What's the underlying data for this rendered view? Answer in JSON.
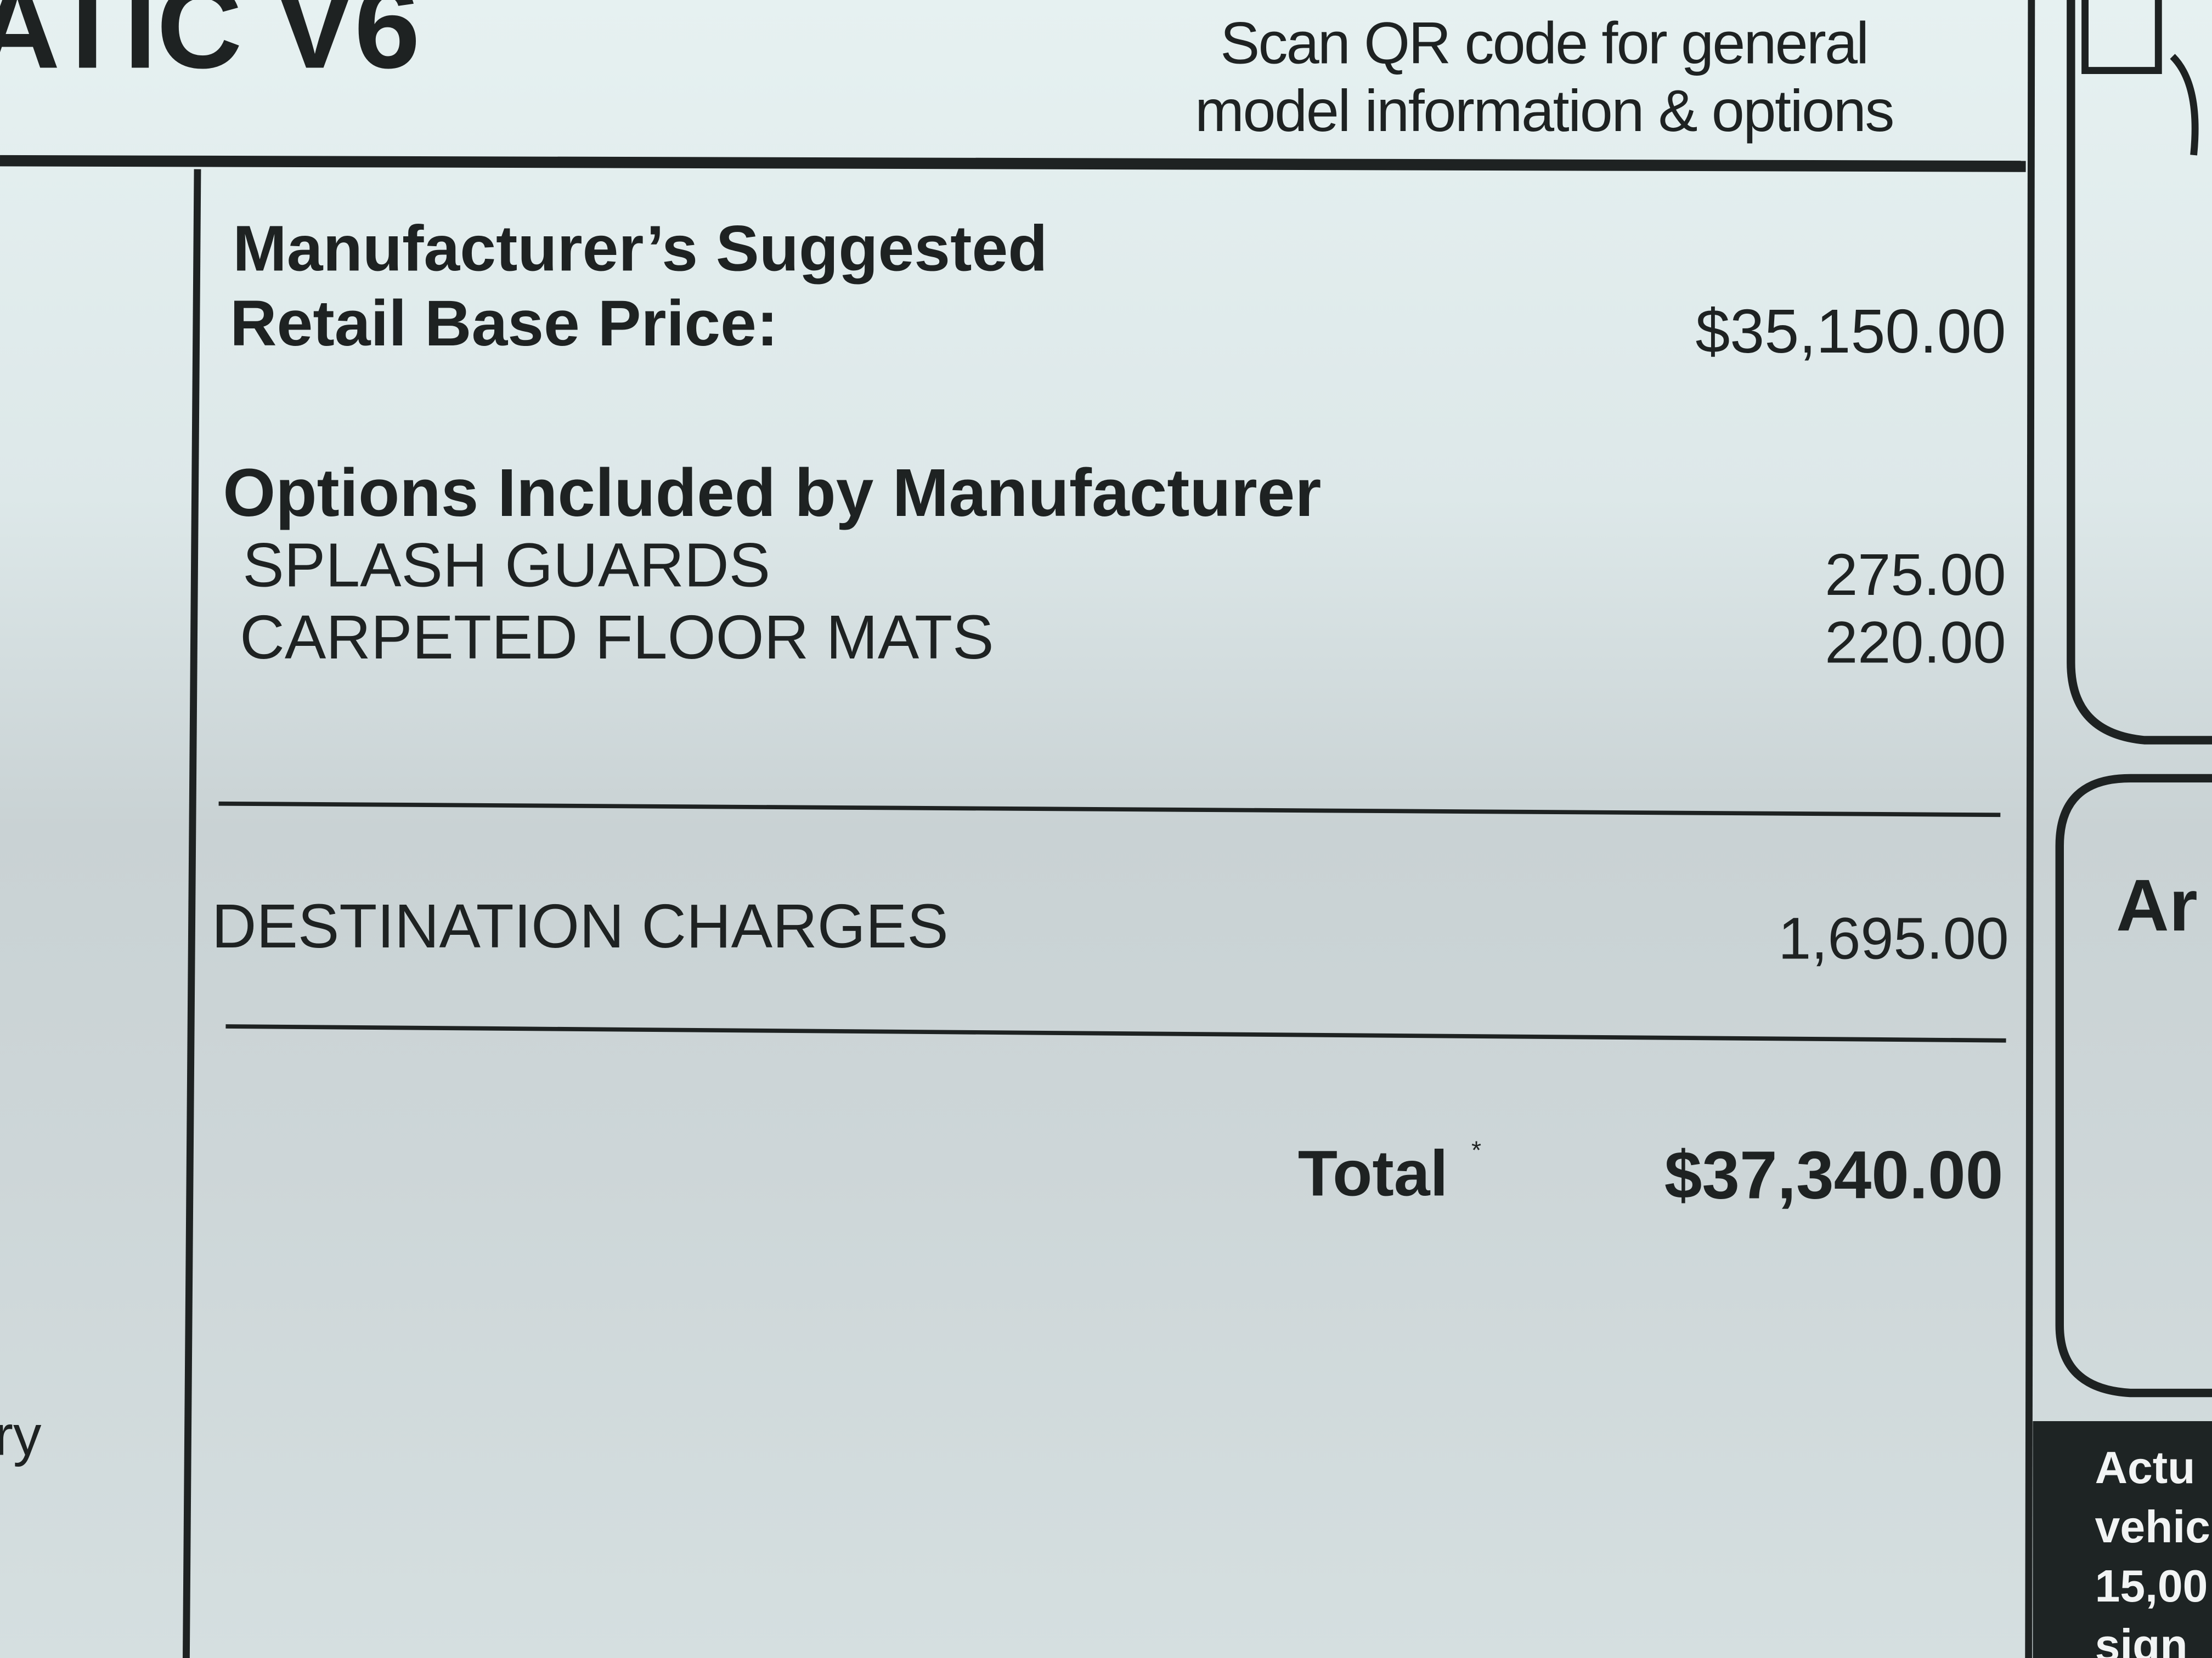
{
  "header": {
    "model_fragment": "ATIC V6",
    "qr_note": [
      "Scan QR code for general",
      "model information & options"
    ]
  },
  "price": {
    "label": [
      "Manufacturer’s Suggested",
      "Retail Base Price:"
    ],
    "amount": "$35,150.00"
  },
  "options": {
    "heading": "Options Included by Manufacturer",
    "items": [
      {
        "name": "SPLASH GUARDS",
        "price": "275.00"
      },
      {
        "name": "CARPETED FLOOR MATS",
        "price": "220.00"
      }
    ]
  },
  "destination": {
    "name": "DESTINATION CHARGES",
    "price": "1,695.00"
  },
  "total": {
    "label": "Total",
    "mark": "*",
    "amount": "$37,340.00"
  },
  "fragments": {
    "left": "ry",
    "right": "Ar",
    "footer": [
      "Actu",
      "vehic",
      "15,00",
      "sign"
    ]
  }
}
